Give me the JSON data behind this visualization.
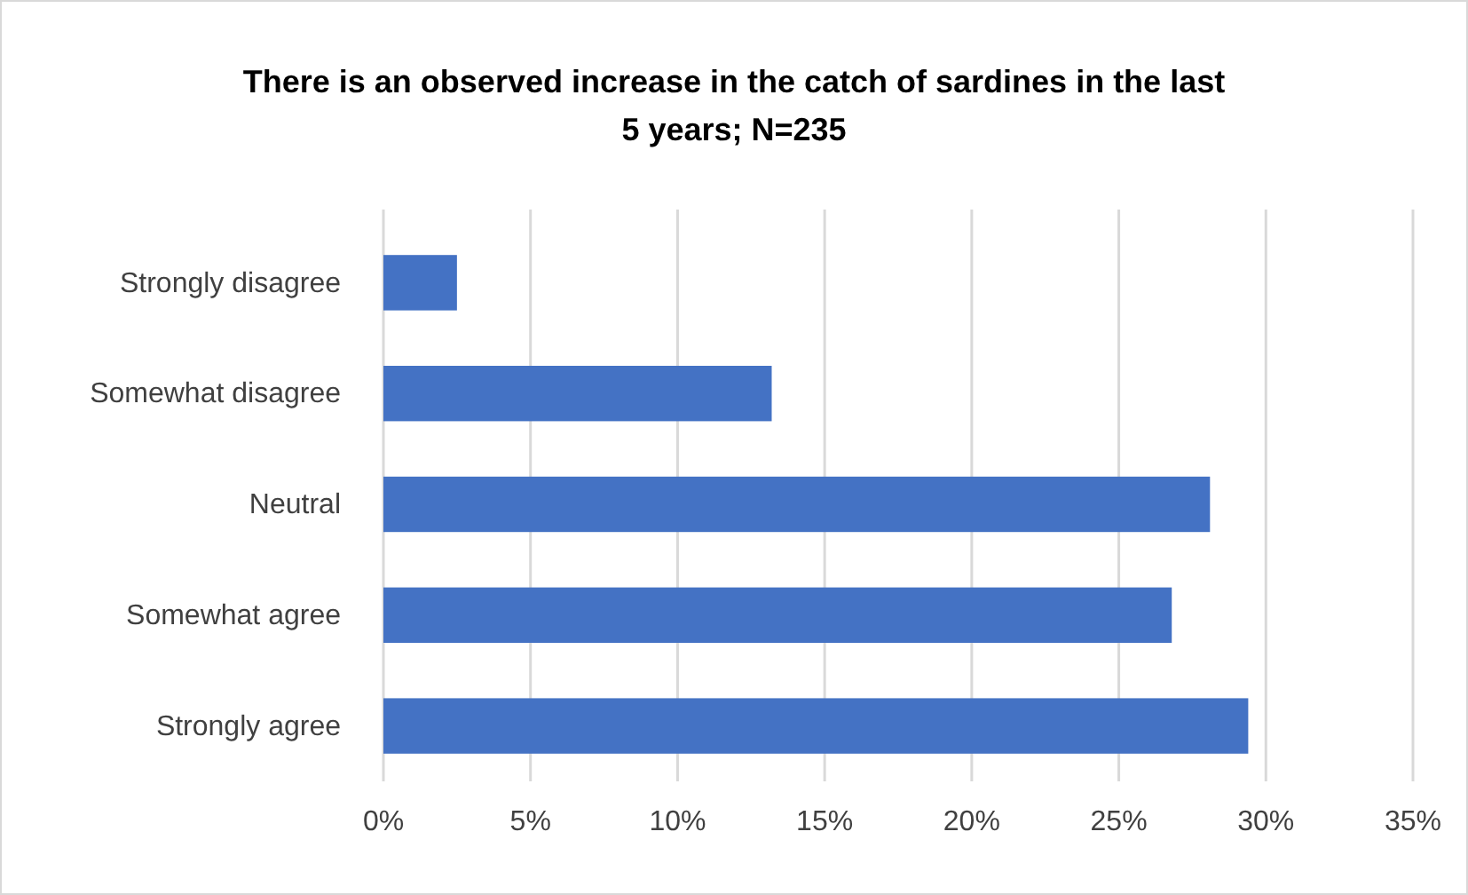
{
  "chart_data": {
    "type": "bar",
    "orientation": "horizontal",
    "title": "There is an observed increase in the catch of sardines in the last\n5 years; N=235",
    "categories": [
      "Strongly disagree",
      "Somewhat disagree",
      "Neutral",
      "Somewhat agree",
      "Strongly agree"
    ],
    "values": [
      2.5,
      13.2,
      28.1,
      26.8,
      29.4
    ],
    "color": "#4472c4",
    "xlim": [
      0,
      35
    ],
    "xticks": [
      {
        "value": 0,
        "label": "0%"
      },
      {
        "value": 5,
        "label": "5%"
      },
      {
        "value": 10,
        "label": "10%"
      },
      {
        "value": 15,
        "label": "15%"
      },
      {
        "value": 20,
        "label": "20%"
      },
      {
        "value": 25,
        "label": "25%"
      },
      {
        "value": 30,
        "label": "30%"
      },
      {
        "value": 35,
        "label": "35%"
      }
    ],
    "grid": "x"
  }
}
